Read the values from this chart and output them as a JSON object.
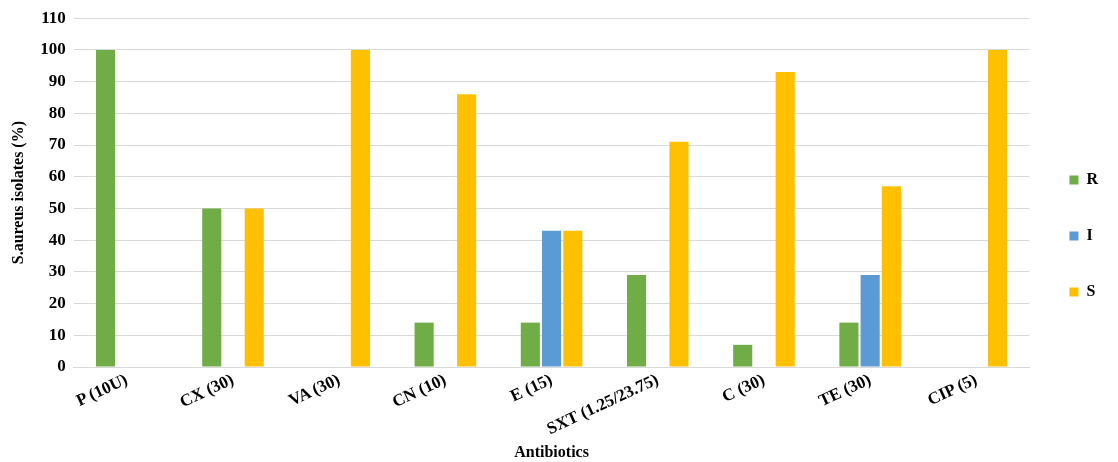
{
  "chart_data": {
    "type": "bar",
    "xlabel": "Antibiotics",
    "ylabel": "S.aureus isolates (%)",
    "categories": [
      "P (10U)",
      "CX (30)",
      "VA (30)",
      "CN (10)",
      "E (15)",
      "SXT (1.25/23.75)",
      "C (30)",
      "TE (30)",
      "CIP (5)"
    ],
    "series": [
      {
        "name": "R",
        "color": "#70ad47",
        "values": [
          100,
          50,
          0,
          14,
          14,
          29,
          7,
          14,
          0
        ]
      },
      {
        "name": "I",
        "color": "#5b9bd5",
        "values": [
          0,
          0,
          0,
          0,
          43,
          0,
          0,
          29,
          0
        ]
      },
      {
        "name": "S",
        "color": "#ffc000",
        "values": [
          0,
          50,
          100,
          86,
          43,
          71,
          93,
          57,
          100
        ]
      }
    ],
    "ylim": [
      0,
      110
    ],
    "yticks": [
      0,
      10,
      20,
      30,
      40,
      50,
      60,
      70,
      80,
      90,
      100,
      110
    ],
    "grid": "y",
    "legend": "right"
  }
}
